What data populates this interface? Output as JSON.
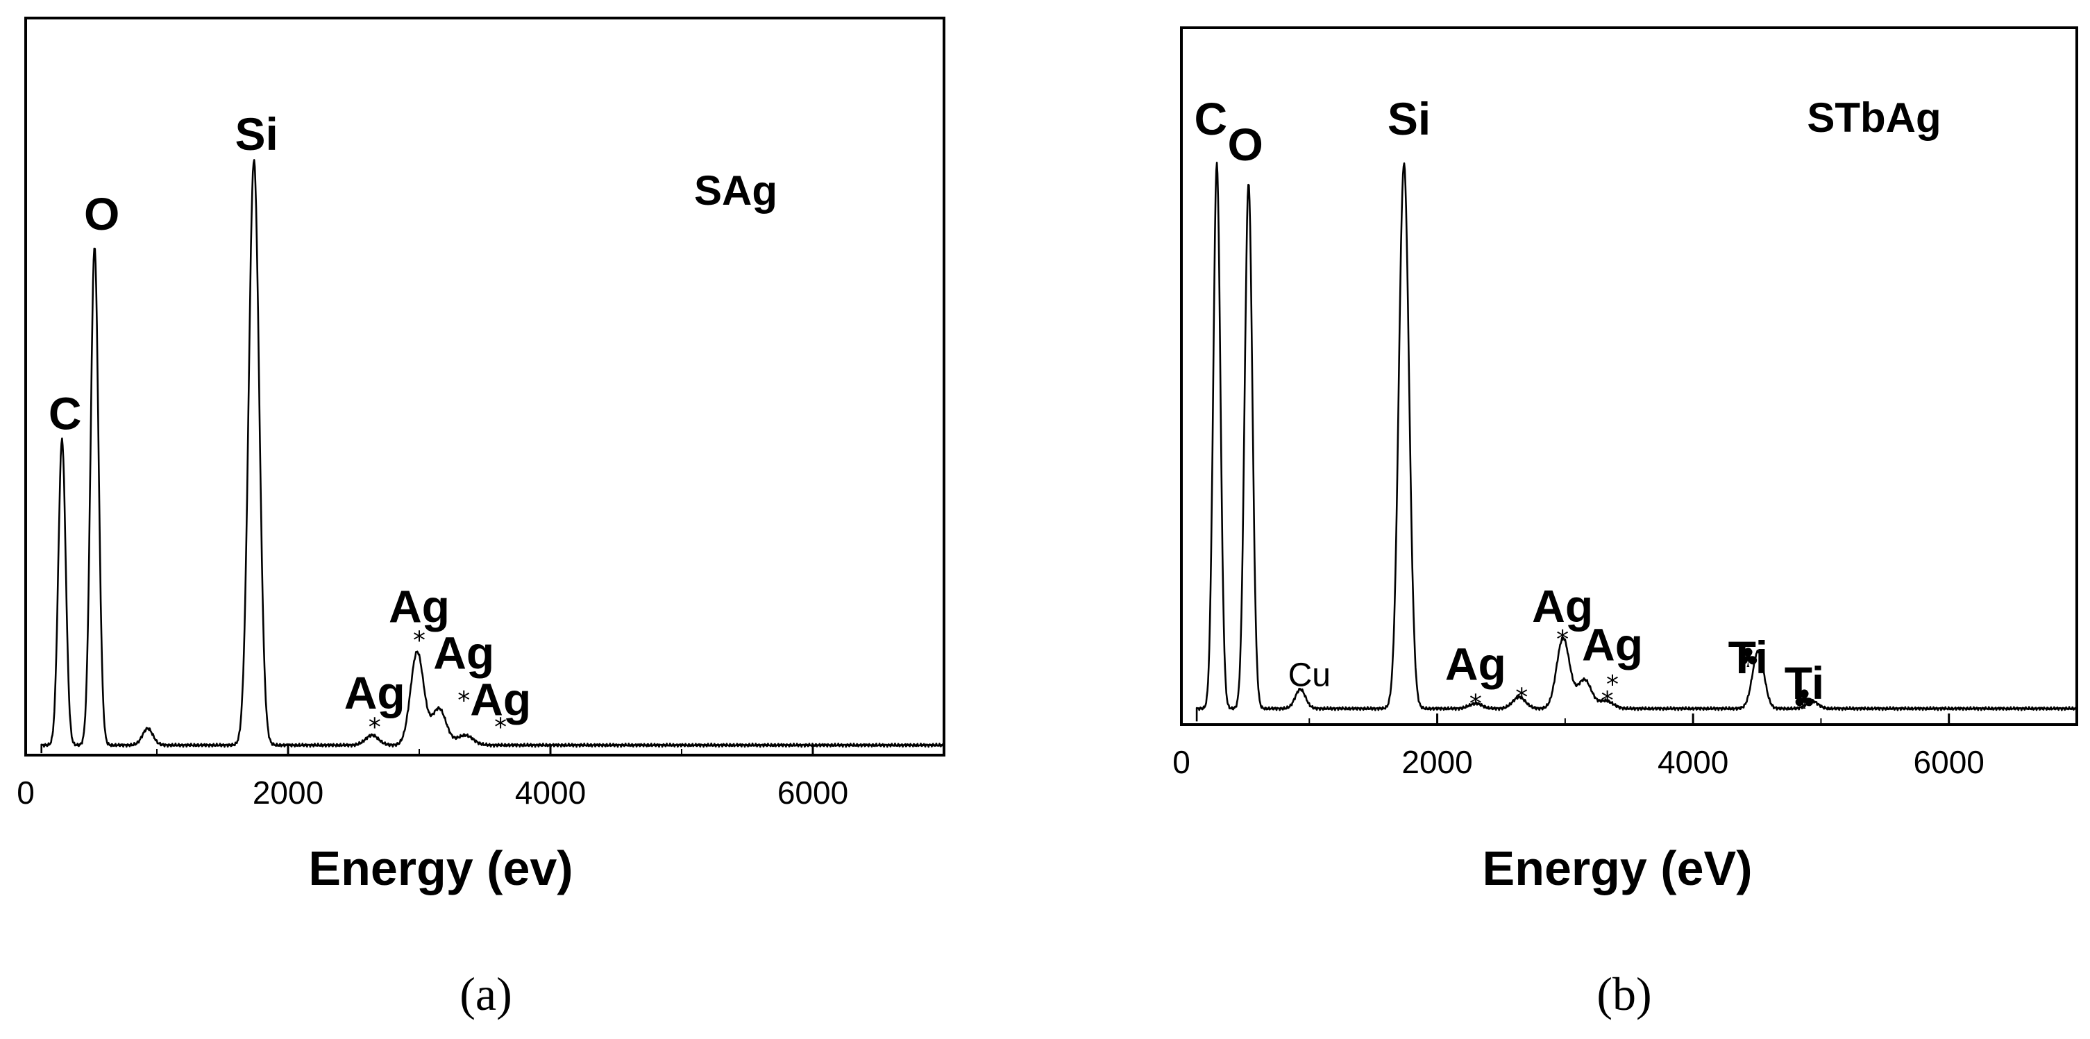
{
  "chart_data": [
    {
      "type": "line",
      "panel": "(a)",
      "sample_label": "SAg",
      "xlabel": "Energy (ev)",
      "ylabel": "",
      "xlim": [
        0,
        7000
      ],
      "ylim": [
        0,
        1.0
      ],
      "x_ticks": [
        "0",
        "2000",
        "4000",
        "6000"
      ],
      "x_tick_values": [
        0,
        2000,
        4000,
        6000
      ],
      "grid": false,
      "series": [
        {
          "peaks": [
            {
              "element": "C",
              "energy": 277,
              "intensity": 0.46,
              "width": 28
            },
            {
              "element": "O",
              "energy": 525,
              "intensity": 0.75,
              "width": 30
            },
            {
              "element": "",
              "energy": 930,
              "intensity": 0.025,
              "width": 40
            },
            {
              "element": "Si",
              "energy": 1740,
              "intensity": 0.88,
              "width": 40
            },
            {
              "element": "",
              "energy": 2640,
              "intensity": 0.015,
              "width": 50
            },
            {
              "element": "Ag",
              "energy": 2984,
              "intensity": 0.14,
              "width": 50
            },
            {
              "element": "",
              "energy": 3150,
              "intensity": 0.055,
              "width": 55
            },
            {
              "element": "",
              "energy": 3350,
              "intensity": 0.015,
              "width": 60
            }
          ],
          "baseline": 0.015
        }
      ],
      "annotations": [
        {
          "text": "C",
          "energy": 300,
          "y": 0.49
        },
        {
          "text": "O",
          "energy": 580,
          "y": 0.79
        },
        {
          "text": "Si",
          "energy": 1760,
          "y": 0.91
        },
        {
          "text": "Ag",
          "energy": 2660,
          "y": 0.07,
          "marker": "*",
          "marker_y": 0.03
        },
        {
          "text": "Ag",
          "energy": 3000,
          "y": 0.2,
          "marker": "*",
          "marker_y": 0.16
        },
        {
          "text": "Ag",
          "energy": 3340,
          "y": 0.13,
          "marker": "*",
          "marker_y": 0.07
        },
        {
          "text": "Ag",
          "energy": 3620,
          "y": 0.06,
          "marker": "*",
          "marker_y": 0.03
        }
      ]
    },
    {
      "type": "line",
      "panel": "(b)",
      "sample_label": "STbAg",
      "xlabel": "Energy (eV)",
      "ylabel": "",
      "xlim": [
        0,
        7000
      ],
      "ylim": [
        0,
        1.0
      ],
      "x_ticks": [
        "0",
        "2000",
        "4000",
        "6000"
      ],
      "x_tick_values": [
        0,
        2000,
        4000,
        6000
      ],
      "grid": false,
      "series": [
        {
          "peaks": [
            {
              "element": "C",
              "energy": 277,
              "intensity": 0.85,
              "width": 28
            },
            {
              "element": "O",
              "energy": 525,
              "intensity": 0.82,
              "width": 30
            },
            {
              "element": "Cu",
              "energy": 930,
              "intensity": 0.03,
              "width": 40
            },
            {
              "element": "Si",
              "energy": 1740,
              "intensity": 0.85,
              "width": 40
            },
            {
              "element": "",
              "energy": 2300,
              "intensity": 0.008,
              "width": 50
            },
            {
              "element": "",
              "energy": 2640,
              "intensity": 0.018,
              "width": 50
            },
            {
              "element": "Ag",
              "energy": 2984,
              "intensity": 0.11,
              "width": 50
            },
            {
              "element": "",
              "energy": 3150,
              "intensity": 0.045,
              "width": 55
            },
            {
              "element": "",
              "energy": 3320,
              "intensity": 0.012,
              "width": 55
            },
            {
              "element": "Ti",
              "energy": 4510,
              "intensity": 0.09,
              "width": 45
            },
            {
              "element": "Ti",
              "energy": 4930,
              "intensity": 0.012,
              "width": 45
            }
          ],
          "baseline": 0.025
        }
      ],
      "annotations": [
        {
          "text": "C",
          "energy": 230,
          "y": 0.92
        },
        {
          "text": "O",
          "energy": 500,
          "y": 0.88
        },
        {
          "text": "Si",
          "energy": 1780,
          "y": 0.92
        },
        {
          "text": "Cu",
          "energy": 1000,
          "y": 0.06,
          "style": "normal"
        },
        {
          "text": "Ag",
          "energy": 2300,
          "y": 0.07,
          "marker": "*",
          "marker_y": 0.02
        },
        {
          "text": "Ag",
          "energy": 2980,
          "y": 0.16,
          "marker": "*",
          "marker_y": 0.12
        },
        {
          "text": "Ag",
          "energy": 3370,
          "y": 0.1,
          "marker": "*",
          "marker_y": 0.05
        },
        {
          "text": "",
          "energy": 2660,
          "y": 0.0,
          "marker": "*",
          "marker_y": 0.03
        },
        {
          "text": "",
          "energy": 3330,
          "y": 0.0,
          "marker": "*",
          "marker_y": 0.025
        },
        {
          "text": "Ti",
          "energy": 4430,
          "y": 0.08,
          "marker": "♣",
          "marker_y": 0.09
        },
        {
          "text": "Ti",
          "energy": 4870,
          "y": 0.04,
          "marker": "♣",
          "marker_y": 0.025
        }
      ]
    }
  ]
}
